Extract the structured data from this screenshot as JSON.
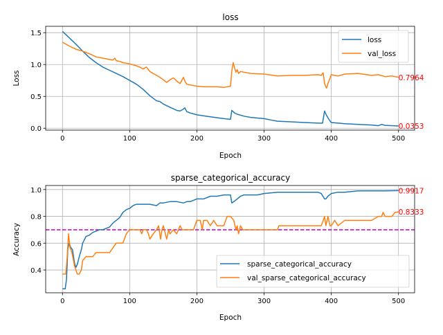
{
  "chart_data": [
    {
      "type": "line",
      "title": "loss",
      "xlabel": "Epoch",
      "ylabel": "Loss",
      "xlim": [
        -25,
        524
      ],
      "ylim": [
        -0.03,
        1.6
      ],
      "xticks": [
        0,
        100,
        200,
        300,
        400,
        500
      ],
      "xtick_labels": [
        "0",
        "100",
        "200",
        "300",
        "400",
        "500"
      ],
      "yticks": [
        0.0,
        0.5,
        1.0,
        1.5
      ],
      "ytick_labels": [
        "0.0",
        "0.5",
        "1.0",
        "1.5"
      ],
      "grid": true,
      "legend_position": "top-right",
      "series": [
        {
          "name": "loss",
          "color": "#1f77b4",
          "x": [
            0,
            10,
            20,
            30,
            40,
            50,
            60,
            70,
            80,
            90,
            100,
            110,
            120,
            130,
            140,
            145,
            150,
            160,
            170,
            175,
            180,
            182,
            185,
            190,
            200,
            220,
            240,
            250,
            252,
            254,
            256,
            260,
            270,
            280,
            300,
            310,
            320,
            340,
            360,
            380,
            387,
            390,
            393,
            397,
            400,
            420,
            440,
            460,
            470,
            475,
            480,
            500
          ],
          "values": [
            1.52,
            1.42,
            1.32,
            1.21,
            1.11,
            1.03,
            0.96,
            0.91,
            0.86,
            0.81,
            0.75,
            0.69,
            0.61,
            0.51,
            0.43,
            0.42,
            0.38,
            0.33,
            0.28,
            0.27,
            0.3,
            0.32,
            0.26,
            0.24,
            0.21,
            0.18,
            0.15,
            0.14,
            0.28,
            0.26,
            0.24,
            0.22,
            0.19,
            0.17,
            0.15,
            0.13,
            0.11,
            0.1,
            0.09,
            0.08,
            0.08,
            0.27,
            0.2,
            0.13,
            0.09,
            0.07,
            0.06,
            0.05,
            0.04,
            0.06,
            0.045,
            0.035
          ]
        },
        {
          "name": "val_loss",
          "color": "#ff7f0e",
          "x": [
            0,
            10,
            20,
            30,
            40,
            50,
            60,
            70,
            75,
            78,
            80,
            85,
            90,
            100,
            110,
            115,
            120,
            125,
            130,
            135,
            140,
            145,
            150,
            155,
            160,
            165,
            170,
            175,
            180,
            182,
            185,
            190,
            200,
            210,
            220,
            230,
            240,
            250,
            252,
            254,
            256,
            258,
            260,
            262,
            265,
            270,
            280,
            300,
            320,
            340,
            360,
            380,
            385,
            388,
            390,
            393,
            395,
            400,
            410,
            420,
            440,
            460,
            470,
            480,
            490,
            500
          ],
          "values": [
            1.35,
            1.29,
            1.24,
            1.21,
            1.17,
            1.12,
            1.1,
            1.08,
            1.07,
            1.1,
            1.06,
            1.05,
            1.03,
            1.01,
            0.98,
            0.96,
            0.93,
            0.96,
            0.89,
            0.86,
            0.83,
            0.8,
            0.76,
            0.72,
            0.76,
            0.79,
            0.74,
            0.7,
            0.8,
            0.74,
            0.69,
            0.68,
            0.66,
            0.65,
            0.65,
            0.65,
            0.64,
            0.66,
            0.9,
            1.03,
            0.95,
            0.88,
            0.92,
            0.86,
            0.89,
            0.88,
            0.86,
            0.85,
            0.82,
            0.83,
            0.83,
            0.84,
            0.83,
            0.87,
            0.7,
            0.63,
            0.7,
            0.84,
            0.82,
            0.85,
            0.86,
            0.83,
            0.84,
            0.81,
            0.82,
            0.8
          ]
        }
      ],
      "end_labels": [
        "0.7964",
        "0.0353"
      ],
      "end_label_values": [
        0.7964,
        0.0353
      ]
    },
    {
      "type": "line",
      "title": "sparse_categorical_accuracy",
      "xlabel": "Epoch",
      "ylabel": "Accuracy",
      "xlim": [
        -25,
        524
      ],
      "ylim": [
        0.23,
        1.03
      ],
      "xticks": [
        0,
        100,
        200,
        300,
        400,
        500
      ],
      "xtick_labels": [
        "0",
        "100",
        "200",
        "300",
        "400",
        "500"
      ],
      "yticks": [
        0.4,
        0.6,
        0.8,
        1.0
      ],
      "ytick_labels": [
        "0.4",
        "0.6",
        "0.8",
        "1.0"
      ],
      "grid": true,
      "legend_position": "bottom-right",
      "hline": {
        "value": 0.7,
        "color": "#bf00bf",
        "style": "dashed"
      },
      "series": [
        {
          "name": "sparse_categorical_accuracy",
          "color": "#1f77b4",
          "x": [
            0,
            4,
            6,
            8,
            10,
            12,
            15,
            18,
            20,
            22,
            25,
            28,
            30,
            35,
            40,
            45,
            50,
            55,
            60,
            65,
            70,
            75,
            80,
            85,
            90,
            95,
            100,
            105,
            110,
            120,
            130,
            140,
            145,
            150,
            160,
            170,
            180,
            185,
            190,
            200,
            210,
            220,
            230,
            240,
            250,
            252,
            255,
            260,
            265,
            270,
            280,
            290,
            300,
            320,
            340,
            360,
            380,
            385,
            390,
            392,
            395,
            400,
            410,
            420,
            440,
            460,
            480,
            500
          ],
          "values": [
            0.26,
            0.26,
            0.33,
            0.56,
            0.6,
            0.57,
            0.55,
            0.45,
            0.42,
            0.44,
            0.5,
            0.55,
            0.6,
            0.65,
            0.66,
            0.68,
            0.69,
            0.7,
            0.7,
            0.71,
            0.72,
            0.75,
            0.77,
            0.79,
            0.83,
            0.85,
            0.86,
            0.88,
            0.89,
            0.89,
            0.89,
            0.88,
            0.9,
            0.9,
            0.91,
            0.91,
            0.9,
            0.91,
            0.91,
            0.93,
            0.93,
            0.95,
            0.95,
            0.96,
            0.96,
            0.9,
            0.91,
            0.93,
            0.95,
            0.96,
            0.96,
            0.96,
            0.97,
            0.98,
            0.98,
            0.98,
            0.98,
            0.97,
            0.93,
            0.93,
            0.95,
            0.97,
            0.98,
            0.98,
            0.99,
            0.99,
            0.99,
            0.9917
          ]
        },
        {
          "name": "val_sparse_categorical_accuracy",
          "color": "#ff7f0e",
          "x": [
            0,
            5,
            7,
            9,
            11,
            14,
            18,
            20,
            22,
            25,
            28,
            30,
            35,
            40,
            45,
            50,
            55,
            60,
            70,
            80,
            85,
            90,
            95,
            100,
            110,
            115,
            118,
            120,
            125,
            128,
            130,
            135,
            140,
            143,
            146,
            148,
            150,
            155,
            158,
            160,
            165,
            170,
            175,
            178,
            180,
            185,
            190,
            195,
            200,
            205,
            208,
            210,
            215,
            220,
            225,
            230,
            240,
            245,
            250,
            255,
            258,
            260,
            262,
            265,
            268,
            270,
            275,
            280,
            290,
            300,
            310,
            320,
            322,
            330,
            340,
            360,
            380,
            385,
            388,
            390,
            392,
            395,
            398,
            400,
            405,
            410,
            420,
            440,
            460,
            470,
            475,
            477,
            480,
            490,
            495,
            500
          ],
          "values": [
            0.37,
            0.37,
            0.5,
            0.67,
            0.57,
            0.53,
            0.43,
            0.4,
            0.37,
            0.37,
            0.4,
            0.47,
            0.5,
            0.5,
            0.5,
            0.53,
            0.53,
            0.53,
            0.53,
            0.6,
            0.6,
            0.6,
            0.67,
            0.7,
            0.7,
            0.7,
            0.67,
            0.7,
            0.7,
            0.67,
            0.63,
            0.67,
            0.7,
            0.73,
            0.63,
            0.7,
            0.73,
            0.63,
            0.7,
            0.67,
            0.7,
            0.67,
            0.73,
            0.7,
            0.7,
            0.7,
            0.7,
            0.7,
            0.77,
            0.77,
            0.7,
            0.77,
            0.77,
            0.73,
            0.77,
            0.73,
            0.73,
            0.8,
            0.8,
            0.77,
            0.7,
            0.73,
            0.67,
            0.73,
            0.7,
            0.7,
            0.7,
            0.7,
            0.7,
            0.7,
            0.7,
            0.7,
            0.73,
            0.73,
            0.73,
            0.73,
            0.73,
            0.73,
            0.77,
            0.8,
            0.73,
            0.8,
            0.73,
            0.73,
            0.77,
            0.73,
            0.77,
            0.77,
            0.77,
            0.8,
            0.8,
            0.83,
            0.8,
            0.8,
            0.83,
            0.8333
          ]
        }
      ],
      "end_labels": [
        "0.9917",
        "0.8333"
      ],
      "end_label_values": [
        0.9917,
        0.8333
      ]
    }
  ],
  "colors": {
    "end_label": "#ff0000",
    "grid": "#b0b0b0",
    "legend_border": "#cccccc"
  }
}
